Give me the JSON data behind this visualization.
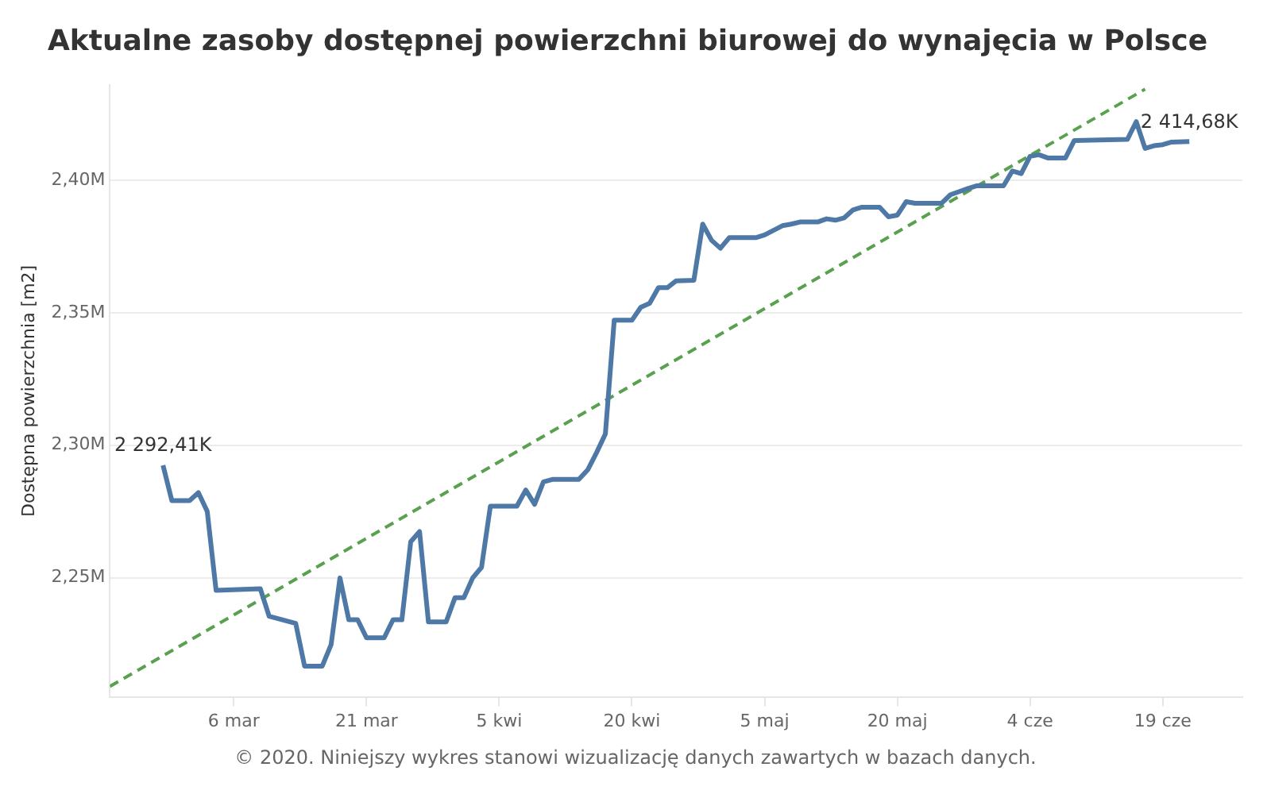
{
  "chart_data": {
    "type": "line",
    "title": "Aktualne zasoby dostępnej powierzchni biurowej do wynajęcia w Polsce",
    "ylabel": "Dostępna powierzchnia [m2]",
    "xlim": [
      "2020-02-21",
      "2020-06-28"
    ],
    "xticks": [
      {
        "value": "2020-03-06",
        "label": "6 mar"
      },
      {
        "value": "2020-03-21",
        "label": "21 mar"
      },
      {
        "value": "2020-04-05",
        "label": "5 kwi"
      },
      {
        "value": "2020-04-20",
        "label": "20 kwi"
      },
      {
        "value": "2020-05-05",
        "label": "5 maj"
      },
      {
        "value": "2020-05-20",
        "label": "20 maj"
      },
      {
        "value": "2020-06-04",
        "label": "4 cze"
      },
      {
        "value": "2020-06-19",
        "label": "19 cze"
      }
    ],
    "ylim": [
      2205000,
      2436000
    ],
    "yticks": [
      {
        "value": 2250000,
        "label": "2,25M"
      },
      {
        "value": 2300000,
        "label": "2,30M"
      },
      {
        "value": 2350000,
        "label": "2,35M"
      },
      {
        "value": 2400000,
        "label": "2,40M"
      }
    ],
    "grid": "y",
    "legend": false,
    "marker": "none",
    "series": [
      {
        "color": "#4e79a7",
        "line_style": "solid",
        "x": [
          "2020-02-27",
          "2020-02-28",
          "2020-03-01",
          "2020-03-02",
          "2020-03-03",
          "2020-03-04",
          "2020-03-09",
          "2020-03-10",
          "2020-03-13",
          "2020-03-14",
          "2020-03-16",
          "2020-03-17",
          "2020-03-18",
          "2020-03-19",
          "2020-03-20",
          "2020-03-21",
          "2020-03-23",
          "2020-03-24",
          "2020-03-25",
          "2020-03-26",
          "2020-03-27",
          "2020-03-28",
          "2020-03-30",
          "2020-03-31",
          "2020-04-01",
          "2020-04-02",
          "2020-04-03",
          "2020-04-04",
          "2020-04-07",
          "2020-04-08",
          "2020-04-09",
          "2020-04-10",
          "2020-04-11",
          "2020-04-14",
          "2020-04-15",
          "2020-04-16",
          "2020-04-17",
          "2020-04-18",
          "2020-04-20",
          "2020-04-21",
          "2020-04-22",
          "2020-04-23",
          "2020-04-24",
          "2020-04-25",
          "2020-04-27",
          "2020-04-28",
          "2020-04-29",
          "2020-04-30",
          "2020-05-01",
          "2020-05-04",
          "2020-05-05",
          "2020-05-07",
          "2020-05-08",
          "2020-05-09",
          "2020-05-11",
          "2020-05-12",
          "2020-05-13",
          "2020-05-14",
          "2020-05-15",
          "2020-05-16",
          "2020-05-18",
          "2020-05-19",
          "2020-05-20",
          "2020-05-21",
          "2020-05-22",
          "2020-05-25",
          "2020-05-26",
          "2020-05-28",
          "2020-05-29",
          "2020-06-01",
          "2020-06-02",
          "2020-06-03",
          "2020-06-04",
          "2020-06-05",
          "2020-06-06",
          "2020-06-08",
          "2020-06-09",
          "2020-06-15",
          "2020-06-16",
          "2020-06-17",
          "2020-06-18",
          "2020-06-19",
          "2020-06-20",
          "2020-06-22"
        ],
        "values": [
          2292410,
          2279100,
          2279100,
          2282100,
          2275000,
          2245200,
          2245800,
          2235400,
          2232700,
          2216600,
          2216600,
          2224700,
          2249900,
          2234100,
          2234100,
          2227300,
          2227300,
          2234100,
          2234100,
          2263600,
          2267400,
          2233300,
          2233300,
          2242400,
          2242400,
          2249900,
          2253900,
          2277000,
          2277000,
          2283100,
          2277700,
          2286200,
          2287100,
          2287100,
          2290700,
          2297200,
          2304300,
          2347200,
          2347200,
          2352100,
          2353600,
          2359500,
          2359500,
          2362100,
          2362300,
          2383500,
          2377400,
          2374400,
          2378400,
          2378400,
          2379400,
          2382900,
          2383500,
          2384300,
          2384300,
          2385500,
          2385000,
          2385900,
          2388900,
          2389900,
          2389900,
          2386300,
          2386900,
          2392000,
          2391400,
          2391400,
          2394600,
          2397000,
          2398000,
          2398000,
          2403600,
          2402600,
          2409100,
          2409700,
          2408500,
          2408500,
          2415100,
          2415500,
          2422200,
          2412100,
          2413100,
          2413500,
          2414500,
          2414680
        ]
      },
      {
        "color": "#59a14f",
        "line_style": "dashed",
        "x": [
          "2020-02-21",
          "2020-06-17"
        ],
        "values": [
          2208950,
          2434460
        ]
      }
    ],
    "annotations": [
      {
        "text": "2 292,41K",
        "x": "2020-02-27",
        "y": 2292410
      },
      {
        "text": "2 414,68K",
        "x": "2020-06-22",
        "y": 2414680
      },
      "© 2020. Niniejszy wykres stanowi wizualizację danych zawartych w bazach danych."
    ]
  }
}
